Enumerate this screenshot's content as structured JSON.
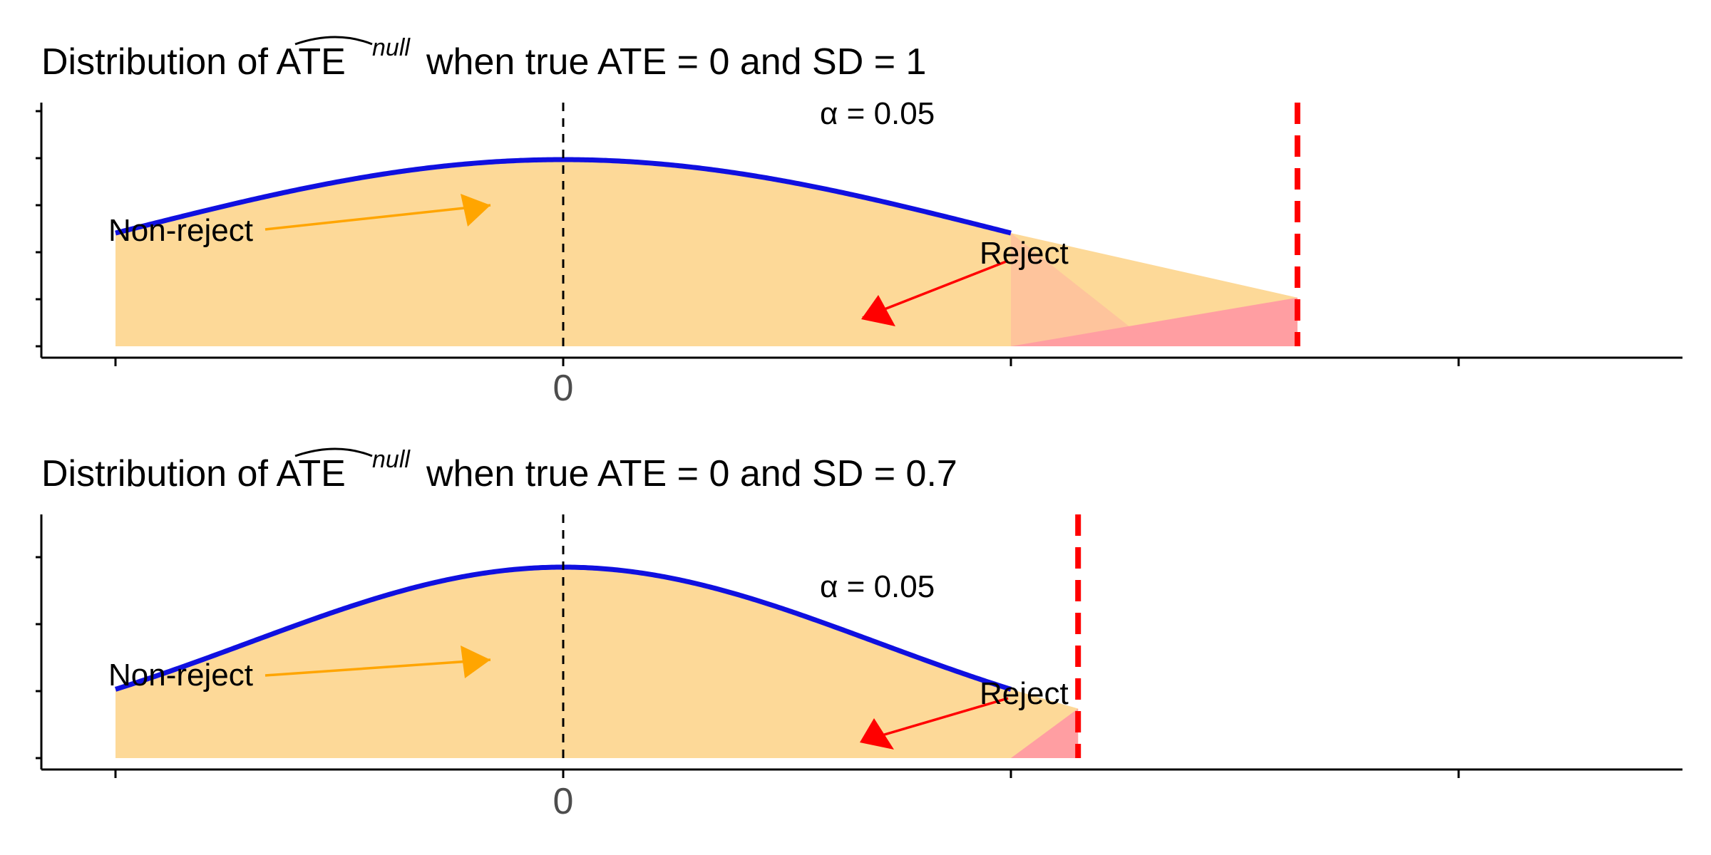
{
  "chart_data": [
    {
      "type": "area",
      "title_prefix": "Distribution of ",
      "title_accent_text": "ATE",
      "title_superscript": "null",
      "title_suffix": " when true ATE = 0 and SD = 1",
      "mean": 0,
      "sd": 1,
      "critical_value": 1.64,
      "xlim": [
        -1.2,
        2.5
      ],
      "x_ticks": [
        -1,
        0,
        1,
        2
      ],
      "x_tick_labels": [
        "",
        "0",
        "",
        ""
      ],
      "curve_range": [
        -1,
        1
      ],
      "alpha_label": "α = 0.05",
      "nonreject_label": "Non-reject",
      "reject_label": "Reject",
      "colors": {
        "nonreject_fill": "#FDD998",
        "reject_fill": "#FF9EA2",
        "curve": "#1010E0",
        "critical_line": "#FF0000",
        "mean_line": "#000000",
        "nonreject_arrow": "#FFA500",
        "reject_arrow": "#FF0000"
      }
    },
    {
      "type": "area",
      "title_prefix": "Distribution of ",
      "title_accent_text": "ATE",
      "title_superscript": "null",
      "title_suffix": " when true ATE = 0 and SD = 0.7",
      "mean": 0,
      "sd": 0.7,
      "critical_value": 1.15,
      "xlim": [
        -1.2,
        2.5
      ],
      "x_ticks": [
        -1,
        0,
        1,
        2
      ],
      "x_tick_labels": [
        "",
        "0",
        "",
        ""
      ],
      "curve_range": [
        -1,
        1
      ],
      "alpha_label": "α = 0.05",
      "nonreject_label": "Non-reject",
      "reject_label": "Reject",
      "colors": {
        "nonreject_fill": "#FDD998",
        "reject_fill": "#FF9EA2",
        "curve": "#1010E0",
        "critical_line": "#FF0000",
        "mean_line": "#000000",
        "nonreject_arrow": "#FFA500",
        "reject_arrow": "#FF0000"
      }
    }
  ]
}
